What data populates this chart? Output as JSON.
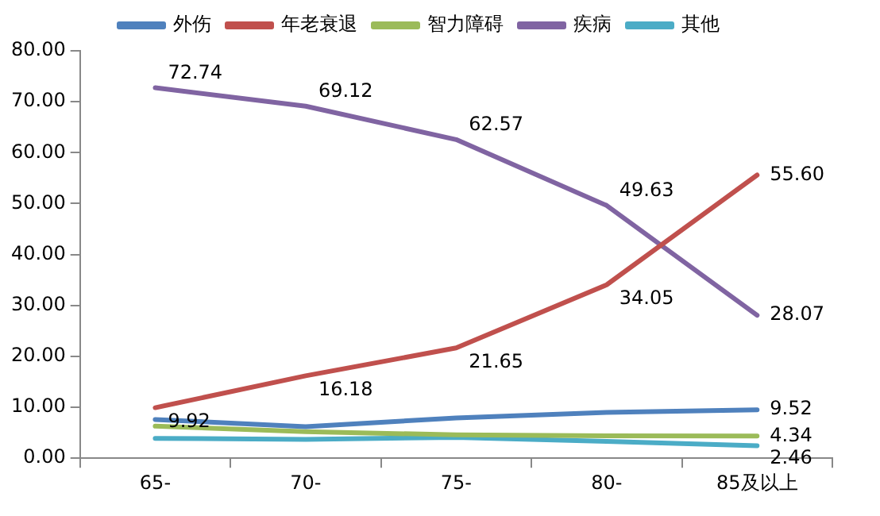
{
  "chart_data": {
    "type": "line",
    "categories": [
      "65-",
      "70-",
      "75-",
      "80-",
      "85及以上"
    ],
    "series": [
      {
        "name": "外伤",
        "color": "#4f81bd",
        "values": [
          7.6,
          6.2,
          7.9,
          9.0,
          9.52
        ],
        "value_labels": [
          null,
          null,
          null,
          null,
          "9.52"
        ]
      },
      {
        "name": "年老衰退",
        "color": "#c0504d",
        "values": [
          9.92,
          16.18,
          21.65,
          34.05,
          55.6
        ],
        "value_labels": [
          "9.92",
          "16.18",
          "21.65",
          "34.05",
          "55.60"
        ]
      },
      {
        "name": "智力障碍",
        "color": "#9bbb59",
        "values": [
          6.3,
          5.2,
          4.6,
          4.4,
          4.34
        ],
        "value_labels": [
          null,
          null,
          null,
          null,
          "4.34"
        ]
      },
      {
        "name": "疾病",
        "color": "#8064a2",
        "values": [
          72.74,
          69.12,
          62.57,
          49.63,
          28.07
        ],
        "value_labels": [
          "72.74",
          "69.12",
          "62.57",
          "49.63",
          "28.07"
        ]
      },
      {
        "name": "其他",
        "color": "#4bacc6",
        "values": [
          3.9,
          3.7,
          4.1,
          3.3,
          2.46
        ],
        "value_labels": [
          null,
          null,
          null,
          null,
          "2.46"
        ]
      }
    ],
    "ylim": [
      0,
      80
    ],
    "yticks": [
      {
        "value": 0,
        "label": "0.00"
      },
      {
        "value": 10,
        "label": "10.00"
      },
      {
        "value": 20,
        "label": "20.00"
      },
      {
        "value": 30,
        "label": "30.00"
      },
      {
        "value": 40,
        "label": "40.00"
      },
      {
        "value": 50,
        "label": "50.00"
      },
      {
        "value": 60,
        "label": "60.00"
      },
      {
        "value": 70,
        "label": "70.00"
      },
      {
        "value": 80,
        "label": "80.00"
      }
    ],
    "grid": false,
    "legend": "top",
    "marker": "none",
    "line_style": "solid"
  }
}
